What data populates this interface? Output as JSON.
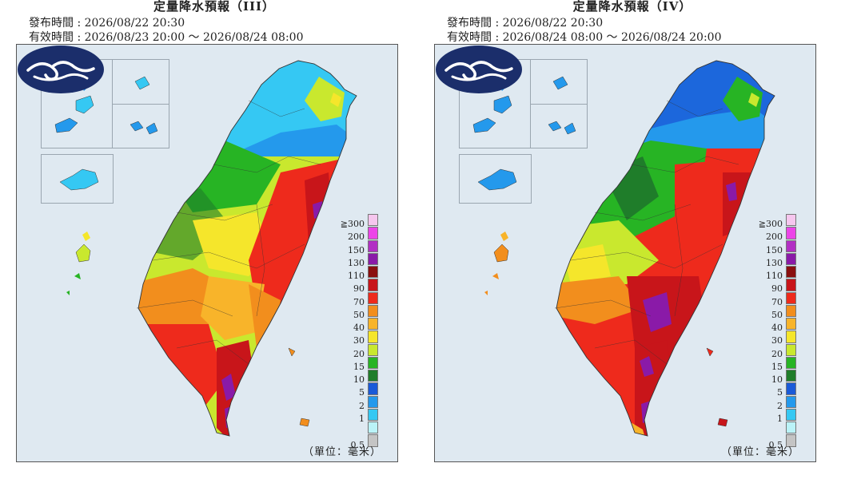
{
  "panels": [
    {
      "title": "定量降水預報（III）",
      "issue_line": "發布時間 : 2026/08/22 20:30",
      "valid_line": "有效時間 : 2026/08/23 20:00 ～ 2026/08/24 08:00",
      "unit": "（單位：毫米）"
    },
    {
      "title": "定量降水預報（IV）",
      "issue_line": "發布時間 : 2026/08/22 20:30",
      "valid_line": "有效時間 : 2026/08/24 08:00 ～ 2026/08/24 20:00",
      "unit": "（單位：毫米）"
    }
  ],
  "legend": {
    "labels_top_down": [
      "≧300",
      "200",
      "150",
      "130",
      "110",
      "90",
      "70",
      "50",
      "40",
      "30",
      "20",
      "15",
      "10",
      "5",
      "2",
      "1"
    ],
    "bottom_label": "0.5",
    "colors_top_down": [
      "#f6c6ee",
      "#ec44e8",
      "#b22fc4",
      "#8a1aa8",
      "#8a0f0f",
      "#c8151a",
      "#ee2a1c",
      "#f28e1d",
      "#f8b42a",
      "#f5e62b",
      "#c9e82e",
      "#27b424",
      "#1f7d2a",
      "#1a5ad8",
      "#2499ec",
      "#35c8f3",
      "#baf3f8",
      "#c4c4c4"
    ]
  },
  "colors": {
    "background": "#dfe9f1",
    "border": "#555555",
    "logo_blue": "#1b2e6b"
  },
  "icons": {
    "logo": "cwa-cloud-logo"
  }
}
